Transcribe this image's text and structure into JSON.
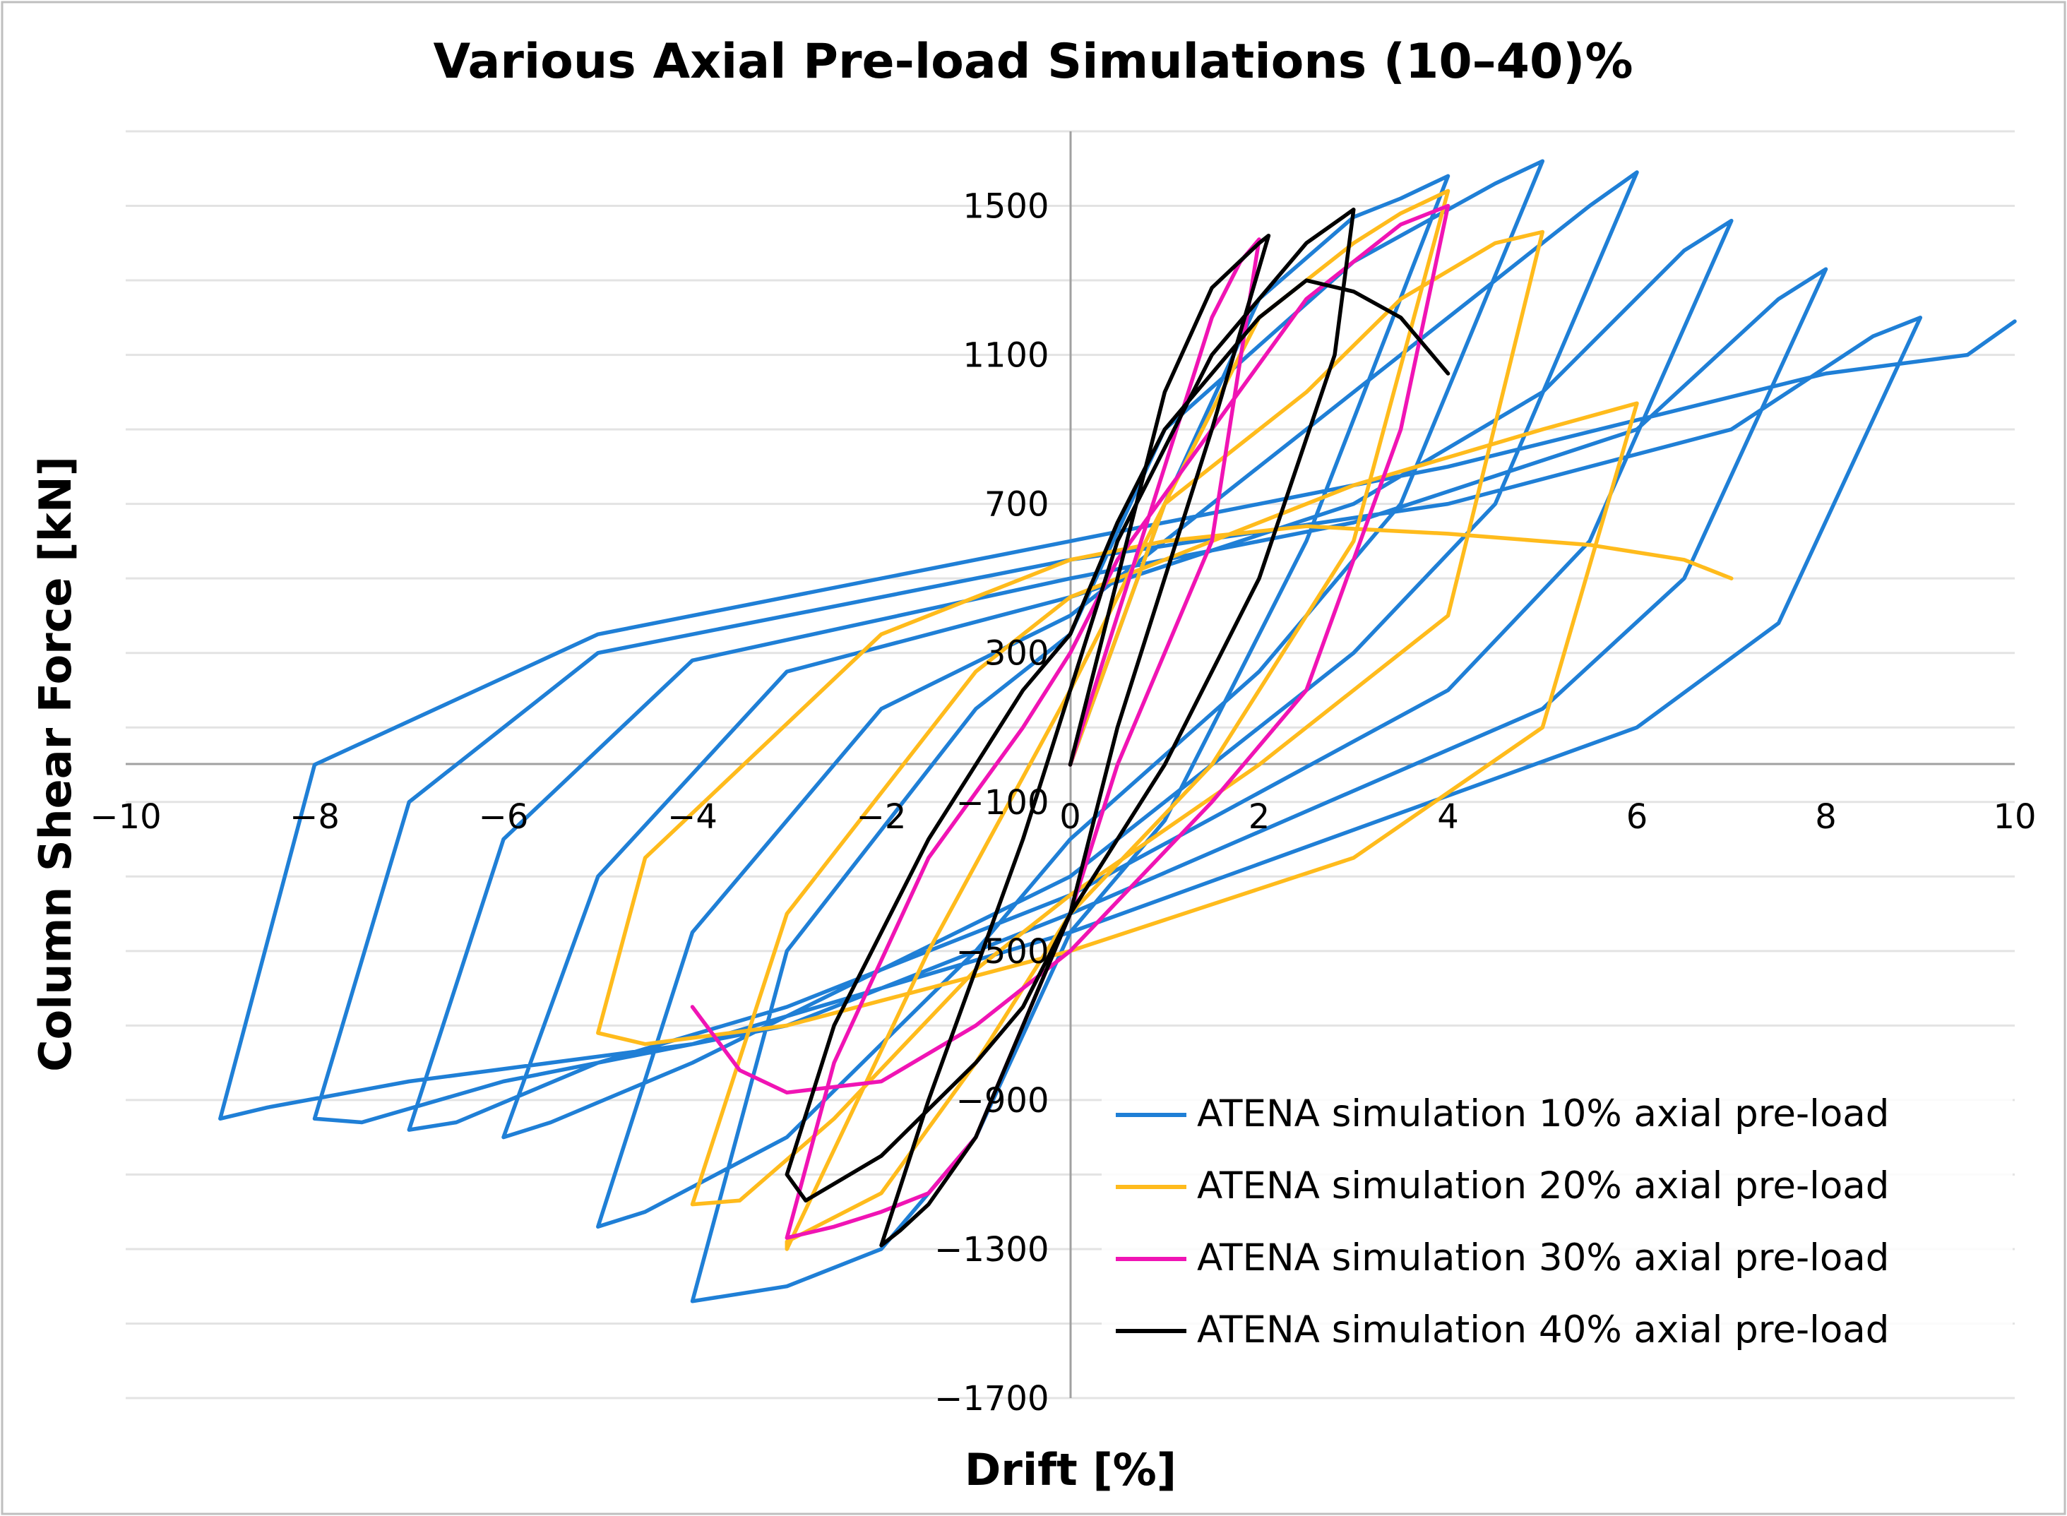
{
  "chart_data": {
    "type": "line",
    "title": "Various Axial Pre-load Simulations (10–40)%",
    "xlabel": "Drift [%]",
    "ylabel": "Column Shear Force [kN]",
    "xlim": [
      -10,
      10
    ],
    "ylim": [
      -1700,
      1700
    ],
    "x_ticks": [
      -10,
      -8,
      -6,
      -4,
      -2,
      0,
      2,
      4,
      6,
      8,
      10
    ],
    "x_tick_labels": [
      "−10",
      "−8",
      "−6",
      "−4",
      "−2",
      "0",
      "2",
      "4",
      "6",
      "8",
      "10"
    ],
    "y_ticks": [
      1500,
      1100,
      700,
      300,
      -100,
      -500,
      -900,
      -1300,
      -1700
    ],
    "y_tick_labels": [
      "1500",
      "1100",
      "700",
      "300",
      "−100",
      "−500",
      "−900",
      "−1300",
      "−1700"
    ],
    "minor_gridlines": [
      1700,
      1300,
      900,
      500,
      100,
      -300,
      -700,
      -1100,
      -1500
    ],
    "grid": true,
    "legend_position": "bottom-right",
    "series": [
      {
        "name": "ATENA simulation 10% axial pre-load",
        "color": "#1f7fd6",
        "x": [
          0,
          1,
          2,
          3,
          3.5,
          4,
          2.5,
          1,
          0,
          -1,
          -2,
          -3,
          -3.5,
          -4,
          -3,
          -1,
          0,
          1,
          3,
          4.5,
          5,
          3.5,
          2,
          0,
          -1,
          -3,
          -4.5,
          -5,
          -4,
          -2,
          0,
          2,
          4,
          5.5,
          6,
          4.5,
          3,
          0,
          -2,
          -4,
          -5.5,
          -6,
          -5,
          -3,
          0,
          3,
          5,
          6.5,
          7,
          5.5,
          4,
          0,
          -3,
          -5,
          -6.5,
          -7,
          -6,
          -4,
          0,
          3,
          6,
          7.5,
          8,
          6.5,
          5,
          0,
          -3,
          -6,
          -7.5,
          -8,
          -7,
          -5,
          0,
          4,
          7,
          8.5,
          9,
          7.5,
          6,
          0,
          -4,
          -7,
          -8.5,
          -9,
          -8,
          -5,
          0,
          4,
          8,
          9.5,
          10
        ],
        "y": [
          0,
          700,
          1250,
          1470,
          1520,
          1580,
          600,
          -150,
          -450,
          -1000,
          -1300,
          -1400,
          -1420,
          -1440,
          -500,
          150,
          350,
          900,
          1350,
          1560,
          1620,
          700,
          250,
          -200,
          -500,
          -1000,
          -1200,
          -1240,
          -450,
          150,
          400,
          800,
          1200,
          1500,
          1590,
          700,
          300,
          -300,
          -550,
          -800,
          -960,
          -1000,
          -300,
          250,
          450,
          700,
          1000,
          1380,
          1460,
          600,
          200,
          -350,
          -650,
          -800,
          -960,
          -980,
          -200,
          280,
          500,
          650,
          900,
          1250,
          1330,
          500,
          150,
          -400,
          -700,
          -850,
          -960,
          -950,
          -100,
          300,
          550,
          700,
          900,
          1150,
          1200,
          380,
          100,
          -450,
          -750,
          -850,
          -920,
          -950,
          0,
          350,
          600,
          800,
          1050,
          1100,
          1190
        ]
      },
      {
        "name": "ATENA simulation 20% axial pre-load",
        "color": "#ffbb1c",
        "x": [
          0,
          1,
          2,
          3,
          3.5,
          4,
          3,
          1.5,
          0,
          -1,
          -2,
          -3,
          -3,
          -1.5,
          0,
          1,
          2.5,
          3.5,
          4.5,
          5,
          4,
          2,
          0,
          -1,
          -2.5,
          -3.5,
          -4,
          -3,
          -1,
          0,
          1.5,
          3,
          5,
          6,
          5,
          3,
          0,
          -1.5,
          -3,
          -4.5,
          -5,
          -4.5,
          -2,
          0,
          1,
          2.5,
          4,
          5.5,
          6.5,
          7
        ],
        "y": [
          0,
          700,
          1200,
          1400,
          1480,
          1540,
          600,
          0,
          -400,
          -800,
          -1150,
          -1280,
          -1300,
          -500,
          200,
          700,
          1000,
          1250,
          1400,
          1430,
          400,
          0,
          -350,
          -550,
          -950,
          -1170,
          -1180,
          -400,
          250,
          450,
          600,
          750,
          900,
          970,
          100,
          -250,
          -500,
          -600,
          -700,
          -750,
          -720,
          -250,
          350,
          550,
          600,
          640,
          620,
          590,
          550,
          500
        ]
      },
      {
        "name": "ATENA simulation 30% axial pre-load",
        "color": "#f014b4",
        "x": [
          0,
          0.5,
          1,
          1.5,
          1.8,
          2,
          1.5,
          0.5,
          0,
          -0.5,
          -1,
          -1.5,
          -2,
          -2.5,
          -3,
          -2.5,
          -1.5,
          -0.5,
          0,
          0.5,
          1.5,
          2.5,
          3.5,
          4,
          3.5,
          2.5,
          1.5,
          0,
          -1,
          -2,
          -3,
          -3.5,
          -4
        ],
        "y": [
          0,
          400,
          800,
          1200,
          1350,
          1410,
          600,
          0,
          -400,
          -700,
          -1000,
          -1150,
          -1200,
          -1240,
          -1270,
          -800,
          -250,
          100,
          300,
          550,
          900,
          1250,
          1450,
          1500,
          900,
          200,
          -100,
          -500,
          -700,
          -850,
          -880,
          -820,
          -650
        ]
      },
      {
        "name": "ATENA simulation 40% axial pre-load",
        "color": "#000000",
        "x": [
          0,
          0.5,
          1,
          1.5,
          2,
          2.1,
          1.5,
          0.5,
          0,
          -0.5,
          -1,
          -1.5,
          -1.8,
          -2,
          -1.5,
          -0.5,
          0,
          0.5,
          1.5,
          2.5,
          3,
          2.8,
          2,
          1,
          0,
          -0.5,
          -1,
          -2,
          -2.8,
          -3,
          -2.5,
          -1.5,
          -0.5,
          0,
          0.5,
          1,
          1.5,
          2,
          2.5,
          3,
          3.5,
          4
        ],
        "y": [
          0,
          500,
          1000,
          1280,
          1400,
          1420,
          900,
          100,
          -400,
          -700,
          -1000,
          -1180,
          -1250,
          -1290,
          -900,
          -200,
          200,
          600,
          1100,
          1400,
          1490,
          1100,
          500,
          0,
          -400,
          -650,
          -800,
          -1050,
          -1170,
          -1100,
          -700,
          -200,
          200,
          350,
          650,
          900,
          1050,
          1200,
          1300,
          1270,
          1200,
          1050
        ]
      }
    ]
  }
}
